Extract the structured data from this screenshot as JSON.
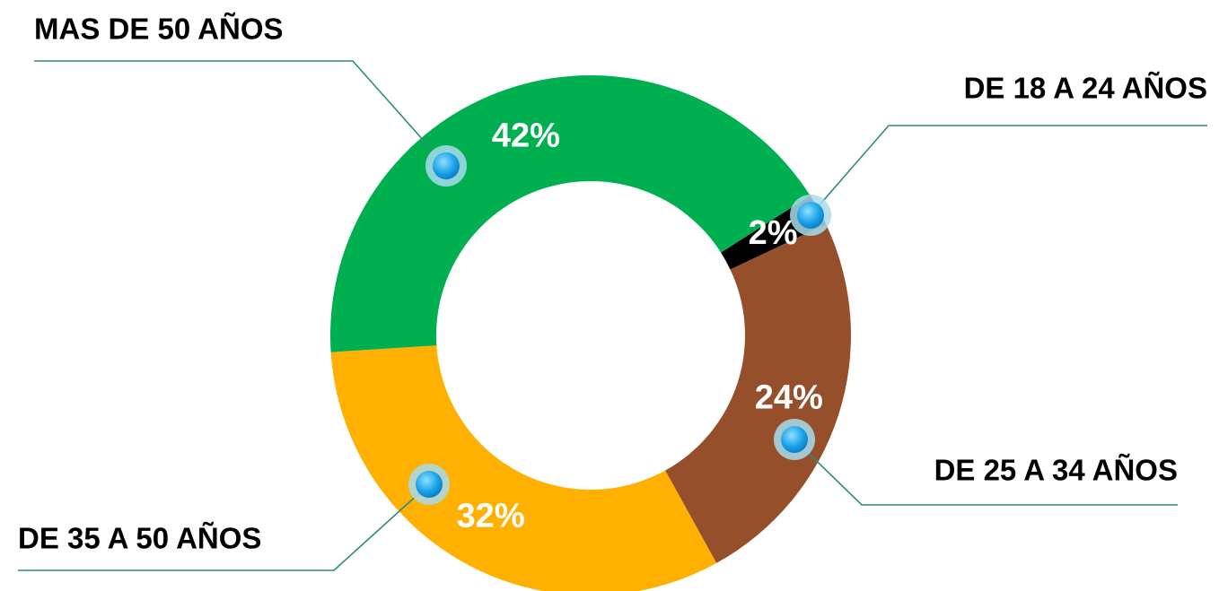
{
  "chart_data": {
    "type": "donut",
    "categories": [
      "DE 18 A 24 AÑOS",
      "DE 25 A 34 AÑOS",
      "DE 35 A 50 AÑOS",
      "MAS DE 50 AÑOS"
    ],
    "values": [
      2,
      24,
      32,
      42
    ],
    "value_labels": [
      "2%",
      "24%",
      "32%",
      "42%"
    ],
    "colors": [
      "#000000",
      "#954f2a",
      "#ffb000",
      "#00b050"
    ]
  }
}
